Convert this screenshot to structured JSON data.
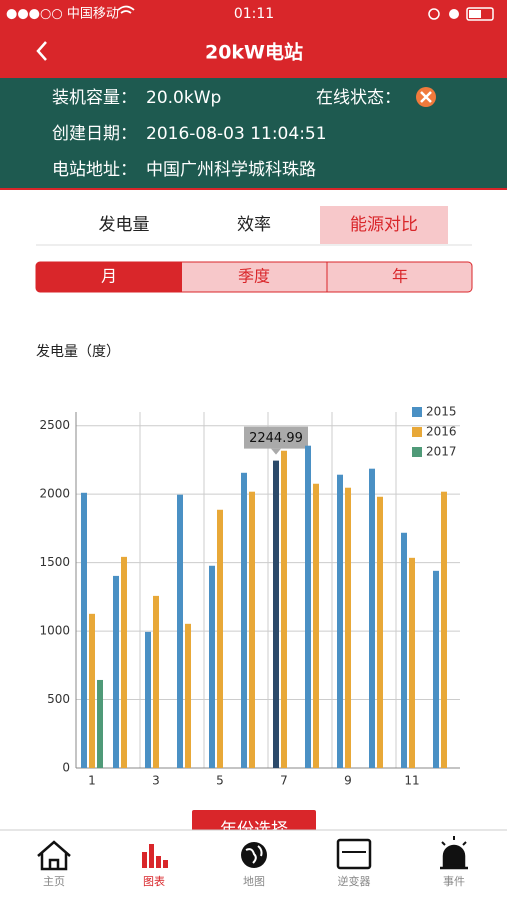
{
  "status_bar": {
    "carrier": "●●●○○ 中国移动",
    "time": "01:11"
  },
  "header": {
    "title": "20kW电站"
  },
  "info": [
    {
      "label": "装机容量：",
      "value": "20.0kWp"
    },
    {
      "label": "在线状态："
    },
    {
      "label": "创建日期：",
      "value": "2016-08-03 11:04:51"
    },
    {
      "label": "电站地址：",
      "value": "中国广州科学城科珠路"
    }
  ],
  "tabs": [
    "发电量",
    "效率",
    "能源对比"
  ],
  "segments": [
    "月",
    "季度",
    "年"
  ],
  "button": "年份选择",
  "nav": [
    "主页",
    "图表",
    "地图",
    "逆变器",
    "事件"
  ],
  "chart_data": {
    "type": "bar",
    "ylabel": "发电量（度）",
    "categories": [
      "1",
      null,
      "3",
      null,
      "5",
      null,
      "7",
      null,
      "9",
      null,
      "11",
      null
    ],
    "series": [
      {
        "name": "2015",
        "color": "#4a90c4",
        "values": [
          2010,
          1403,
          994,
          1996,
          1477,
          2156,
          2244.99,
          2354,
          2142,
          2186,
          1718,
          1440
        ],
        "value_labels": [
          null,
          null,
          null,
          null,
          null,
          null,
          "2244.99",
          null,
          null,
          null,
          null,
          null
        ]
      },
      {
        "name": "2016",
        "color": "#e8a838",
        "values": [
          1126,
          1542,
          1257,
          1053,
          1886,
          2018,
          2317,
          2076,
          2047,
          1981,
          1535,
          2018
        ]
      },
      {
        "name": "2017",
        "color": "#4f9a78",
        "values": [
          643,
          null,
          null,
          null,
          null,
          null,
          null,
          null,
          null,
          null,
          null,
          null
        ]
      }
    ],
    "ylim": [
      0,
      2600
    ],
    "yticks": [
      0,
      500,
      1000,
      1500,
      2000,
      2500
    ],
    "grid": true,
    "legend": "top-right"
  }
}
